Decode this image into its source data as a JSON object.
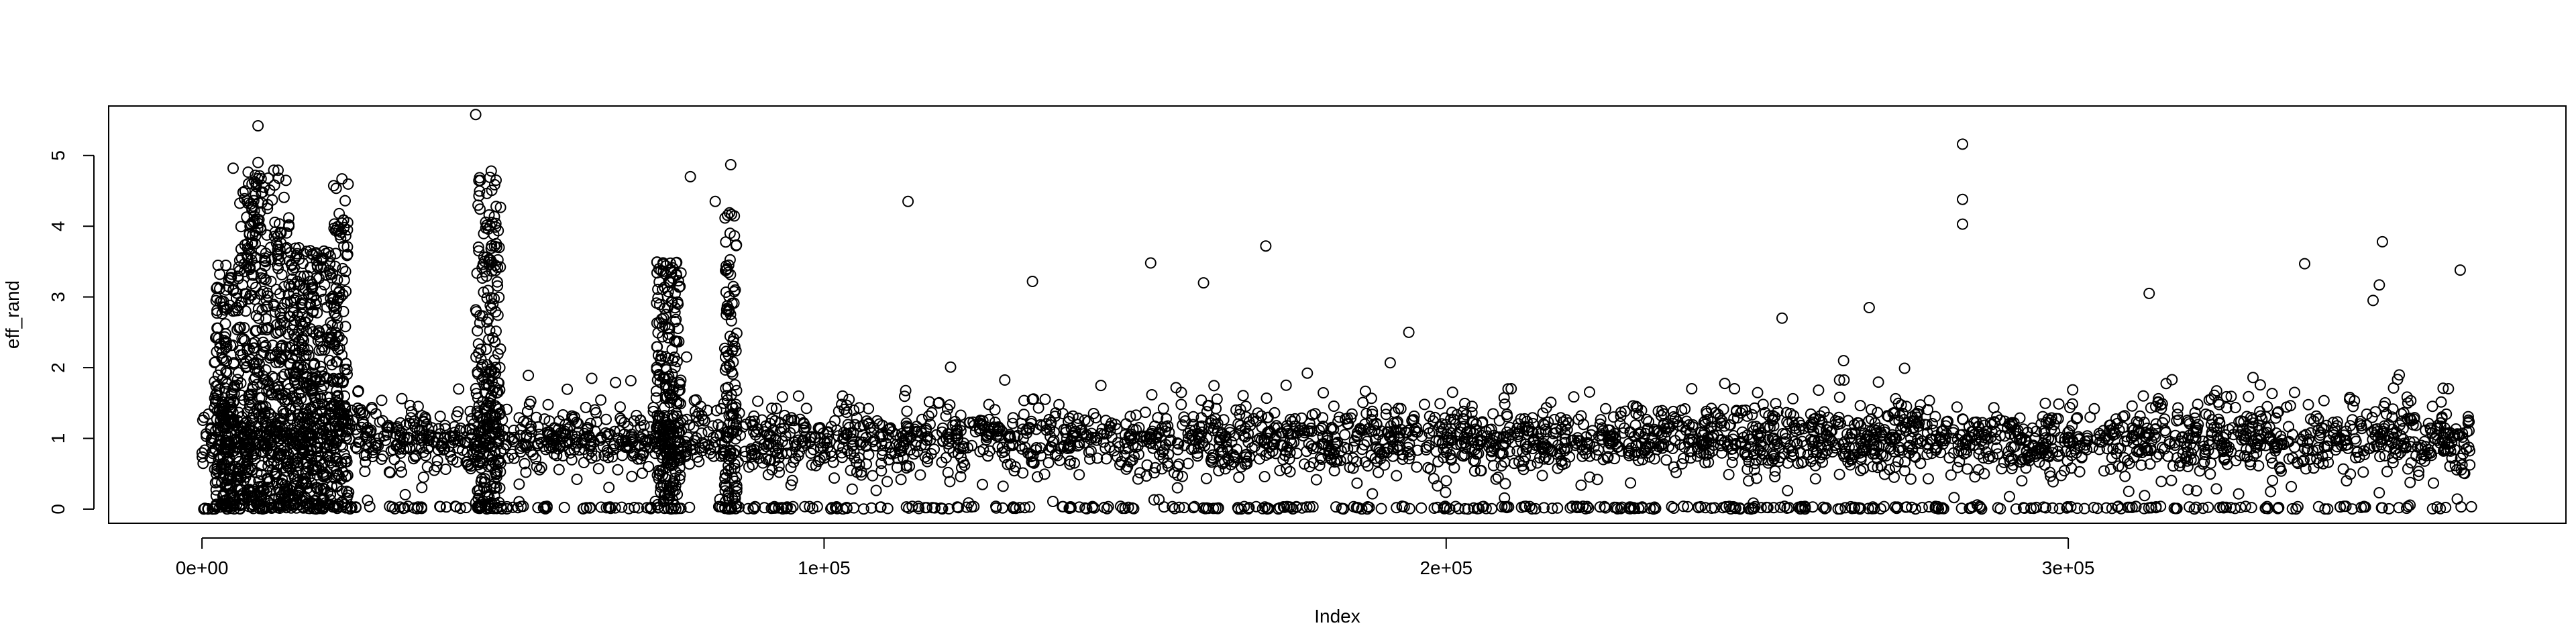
{
  "chart_data": {
    "type": "scatter",
    "xlabel": "Index",
    "ylabel": "eff_rand",
    "xlim": [
      -15000,
      380000
    ],
    "ylim": [
      -0.2,
      5.7
    ],
    "x_ticks": [
      {
        "value": 0,
        "label": "0e+00"
      },
      {
        "value": 100000,
        "label": "1e+05"
      },
      {
        "value": 200000,
        "label": "2e+05"
      },
      {
        "value": 300000,
        "label": "3e+05"
      }
    ],
    "y_ticks": [
      {
        "value": 0,
        "label": "0"
      },
      {
        "value": 1,
        "label": "1"
      },
      {
        "value": 2,
        "label": "2"
      },
      {
        "value": 3,
        "label": "3"
      },
      {
        "value": 4,
        "label": "4"
      },
      {
        "value": 5,
        "label": "5"
      }
    ],
    "marker": "open-circle",
    "marker_color": "#000000",
    "n_points_approx": 365000,
    "x_range": [
      1,
      365000
    ],
    "bulk_band": [
      0.4,
      1.6
    ],
    "high_variance_regions": [
      {
        "x": [
          2000,
          6000
        ],
        "ymax": 3.5
      },
      {
        "x": [
          6000,
          14000
        ],
        "ymax": 4.8
      },
      {
        "x": [
          14000,
          21000
        ],
        "ymax": 3.7
      },
      {
        "x": [
          21000,
          23500
        ],
        "ymax": 4.6
      },
      {
        "x": [
          44000,
          48000
        ],
        "ymax": 4.7
      },
      {
        "x": [
          73000,
          77000
        ],
        "ymax": 3.5
      },
      {
        "x": [
          84000,
          86000
        ],
        "ymax": 4.3
      }
    ],
    "outliers": [
      {
        "x": 9000,
        "y": 5.42
      },
      {
        "x": 9000,
        "y": 4.9
      },
      {
        "x": 5000,
        "y": 4.82
      },
      {
        "x": 22500,
        "y": 4.67
      },
      {
        "x": 44000,
        "y": 5.58
      },
      {
        "x": 46500,
        "y": 4.78
      },
      {
        "x": 78500,
        "y": 4.7
      },
      {
        "x": 85000,
        "y": 4.87
      },
      {
        "x": 82500,
        "y": 4.35
      },
      {
        "x": 113500,
        "y": 4.35
      },
      {
        "x": 152500,
        "y": 3.48
      },
      {
        "x": 171000,
        "y": 3.72
      },
      {
        "x": 161000,
        "y": 3.2
      },
      {
        "x": 133500,
        "y": 3.22
      },
      {
        "x": 283000,
        "y": 5.16
      },
      {
        "x": 283000,
        "y": 4.38
      },
      {
        "x": 283000,
        "y": 4.03
      },
      {
        "x": 338000,
        "y": 3.47
      },
      {
        "x": 350500,
        "y": 3.78
      },
      {
        "x": 350000,
        "y": 3.17
      },
      {
        "x": 363000,
        "y": 3.38
      },
      {
        "x": 313000,
        "y": 3.05
      },
      {
        "x": 349000,
        "y": 2.95
      },
      {
        "x": 268000,
        "y": 2.85
      },
      {
        "x": 194000,
        "y": 2.5
      },
      {
        "x": 254000,
        "y": 2.7
      }
    ]
  }
}
